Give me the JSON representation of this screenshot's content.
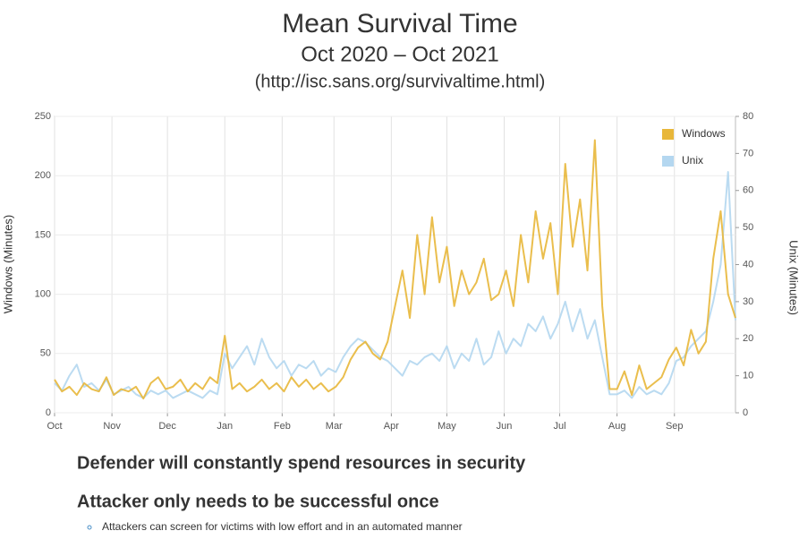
{
  "slide": {
    "title": "Mean Survival Time",
    "subtitle": "Oct 2020 – Oct 2021",
    "source": "(http://isc.sans.org/survivaltime.html)",
    "bullets": [
      "Defender will constantly spend resources in security",
      "Attacker only needs to be successful once"
    ],
    "sub_bullets": [
      "Attackers can screen for victims with low effort and in an automated manner"
    ]
  },
  "chart_data": {
    "type": "line",
    "ylabel": "Windows (Minutes)",
    "y2label": "Unix (Minutes)",
    "xlim": [
      0,
      92
    ],
    "xticks": [
      {
        "value": 0,
        "label": "Oct"
      },
      {
        "value": 7.75,
        "label": "Nov"
      },
      {
        "value": 15.25,
        "label": "Dec"
      },
      {
        "value": 23,
        "label": "Jan"
      },
      {
        "value": 30.75,
        "label": "Feb"
      },
      {
        "value": 37.75,
        "label": "Mar"
      },
      {
        "value": 45.5,
        "label": "Apr"
      },
      {
        "value": 53,
        "label": "May"
      },
      {
        "value": 60.75,
        "label": "Jun"
      },
      {
        "value": 68.25,
        "label": "Jul"
      },
      {
        "value": 76,
        "label": "Aug"
      },
      {
        "value": 83.75,
        "label": "Sep"
      }
    ],
    "ylim": [
      0,
      250
    ],
    "yticks": [
      0,
      50,
      100,
      150,
      200,
      250
    ],
    "y2lim": [
      0,
      80
    ],
    "y2ticks": [
      0,
      10,
      20,
      30,
      40,
      50,
      60,
      70,
      80
    ],
    "grid": true,
    "legend": "upper right",
    "series": [
      {
        "name": "Windows",
        "color": "#e8b73a",
        "values": [
          28,
          18,
          22,
          15,
          25,
          20,
          18,
          30,
          15,
          20,
          18,
          22,
          12,
          25,
          30,
          20,
          22,
          28,
          18,
          25,
          20,
          30,
          25,
          65,
          20,
          25,
          18,
          22,
          28,
          20,
          25,
          18,
          30,
          22,
          28,
          20,
          25,
          18,
          22,
          30,
          45,
          55,
          60,
          50,
          45,
          60,
          90,
          120,
          80,
          150,
          100,
          165,
          110,
          140,
          90,
          120,
          100,
          110,
          130,
          95,
          100,
          120,
          90,
          150,
          110,
          170,
          130,
          160,
          100,
          210,
          140,
          180,
          120,
          230,
          90,
          20,
          20,
          35,
          15,
          40,
          20,
          25,
          30,
          45,
          55,
          40,
          70,
          50,
          60,
          130,
          170,
          100,
          80
        ]
      },
      {
        "name": "Unix",
        "color": "#b4d7f0",
        "axis": "y2",
        "values": [
          8,
          6,
          10,
          13,
          7,
          8,
          6,
          9,
          5,
          6,
          7,
          5,
          4,
          6,
          5,
          6,
          4,
          5,
          6,
          5,
          4,
          6,
          5,
          16,
          12,
          15,
          18,
          13,
          20,
          15,
          12,
          14,
          10,
          13,
          12,
          14,
          10,
          12,
          11,
          15,
          18,
          20,
          19,
          17,
          15,
          14,
          12,
          10,
          14,
          13,
          15,
          16,
          14,
          18,
          12,
          16,
          14,
          20,
          13,
          15,
          22,
          16,
          20,
          18,
          24,
          22,
          26,
          20,
          24,
          30,
          22,
          28,
          20,
          25,
          15,
          5,
          5,
          6,
          4,
          7,
          5,
          6,
          5,
          8,
          14,
          15,
          18,
          20,
          22,
          30,
          40,
          65,
          25
        ]
      }
    ]
  }
}
